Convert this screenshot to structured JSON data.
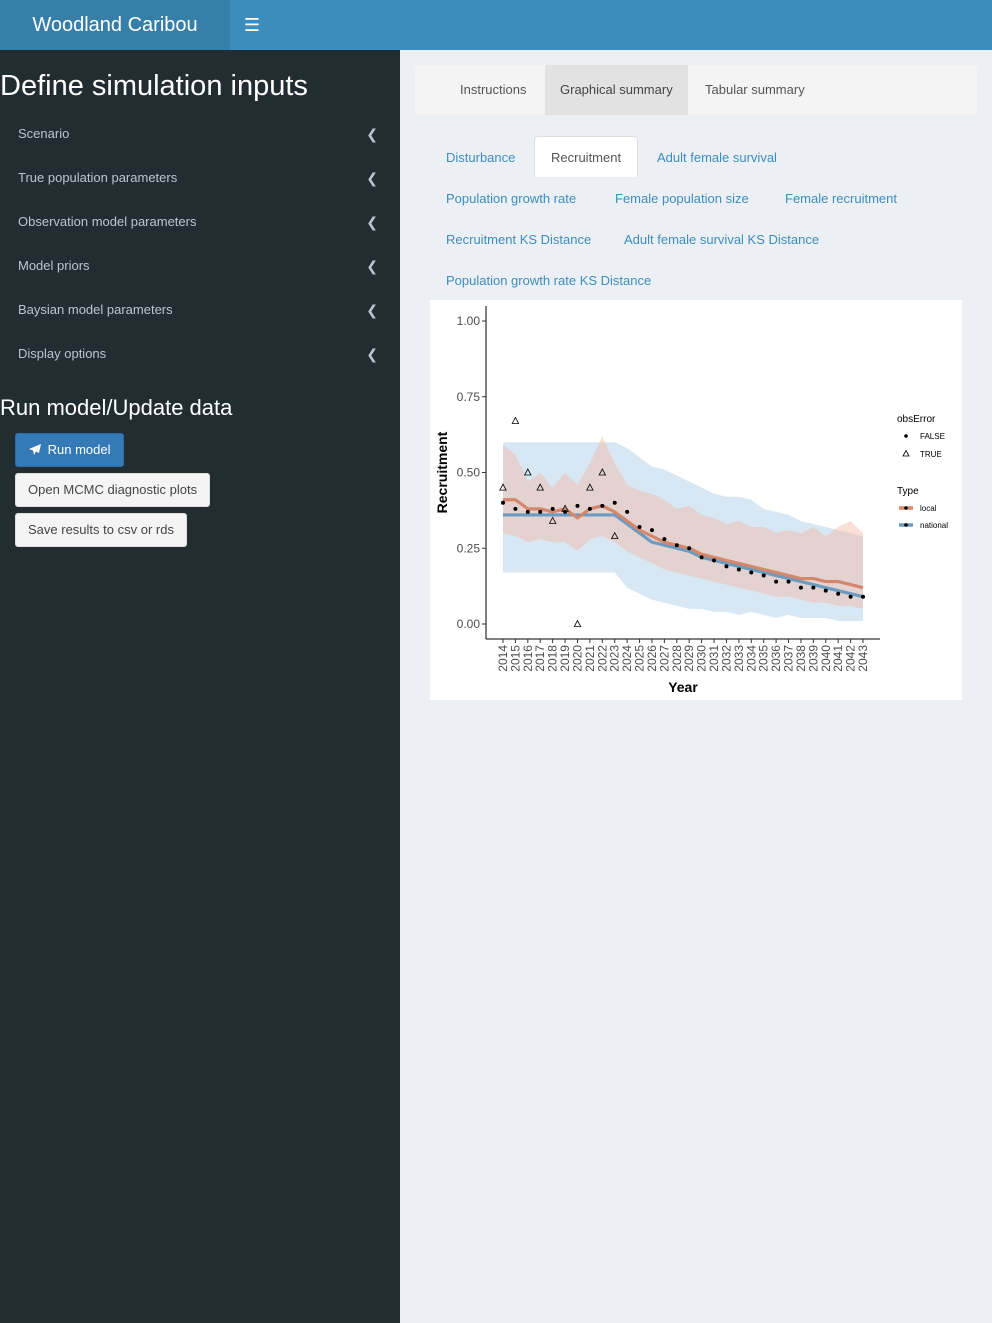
{
  "header": {
    "title": "Woodland Caribou",
    "toggle_icon": "hamburger-icon"
  },
  "sidebar": {
    "title": "Define simulation inputs",
    "items": [
      {
        "label": "Scenario"
      },
      {
        "label": "True population parameters"
      },
      {
        "label": "Observation model parameters"
      },
      {
        "label": "Model priors"
      },
      {
        "label": "Baysian model parameters"
      },
      {
        "label": "Display options"
      }
    ],
    "run_title": "Run model/Update data",
    "run_button": "Run model",
    "mcmc_button": "Open MCMC diagnostic plots",
    "save_button": "Save results to csv or rds"
  },
  "main_tabs": [
    {
      "label": "Instructions"
    },
    {
      "label": "Graphical summary",
      "active": true
    },
    {
      "label": "Tabular summary"
    }
  ],
  "sub_tabs": [
    {
      "label": "Disturbance"
    },
    {
      "label": "Recruitment",
      "active": true
    },
    {
      "label": "Adult female survival"
    },
    {
      "label": "Population growth rate"
    },
    {
      "label": "Female population size"
    },
    {
      "label": "Female recruitment"
    },
    {
      "label": "Recruitment KS Distance"
    },
    {
      "label": "Adult female survival KS Distance"
    },
    {
      "label": "Population growth rate KS Distance"
    }
  ],
  "colors": {
    "accent": "#3c8dbc",
    "sidebar": "#222d32",
    "local": "#d4876b",
    "national": "#6c9bc2"
  },
  "chart_data": {
    "type": "line",
    "xlabel": "Year",
    "ylabel": "Recruitment",
    "ylim": [
      0,
      1
    ],
    "yticks": [
      "0.00",
      "0.25",
      "0.50",
      "0.75",
      "1.00"
    ],
    "x": [
      2014,
      2015,
      2016,
      2017,
      2018,
      2019,
      2020,
      2021,
      2022,
      2023,
      2024,
      2025,
      2026,
      2027,
      2028,
      2029,
      2030,
      2031,
      2032,
      2033,
      2034,
      2035,
      2036,
      2037,
      2038,
      2039,
      2040,
      2041,
      2042,
      2043
    ],
    "series": [
      {
        "name": "local",
        "values": [
          0.41,
          0.41,
          0.38,
          0.38,
          0.37,
          0.38,
          0.35,
          0.38,
          0.39,
          0.37,
          0.34,
          0.31,
          0.29,
          0.27,
          0.26,
          0.25,
          0.23,
          0.22,
          0.21,
          0.2,
          0.19,
          0.18,
          0.17,
          0.16,
          0.15,
          0.15,
          0.14,
          0.14,
          0.13,
          0.12
        ],
        "lower": [
          0.3,
          0.29,
          0.27,
          0.28,
          0.27,
          0.27,
          0.24,
          0.28,
          0.29,
          0.27,
          0.24,
          0.22,
          0.2,
          0.18,
          0.17,
          0.16,
          0.15,
          0.14,
          0.13,
          0.12,
          0.11,
          0.1,
          0.09,
          0.09,
          0.08,
          0.07,
          0.07,
          0.06,
          0.06,
          0.05
        ],
        "upper": [
          0.59,
          0.56,
          0.47,
          0.5,
          0.45,
          0.5,
          0.46,
          0.53,
          0.62,
          0.53,
          0.46,
          0.44,
          0.43,
          0.41,
          0.38,
          0.39,
          0.36,
          0.35,
          0.33,
          0.34,
          0.32,
          0.32,
          0.3,
          0.31,
          0.3,
          0.32,
          0.29,
          0.32,
          0.34,
          0.3
        ]
      },
      {
        "name": "national",
        "values": [
          0.36,
          0.36,
          0.36,
          0.36,
          0.36,
          0.36,
          0.36,
          0.36,
          0.36,
          0.36,
          0.33,
          0.3,
          0.27,
          0.26,
          0.25,
          0.24,
          0.22,
          0.21,
          0.2,
          0.19,
          0.18,
          0.17,
          0.16,
          0.15,
          0.14,
          0.13,
          0.12,
          0.11,
          0.1,
          0.09
        ],
        "lower": [
          0.17,
          0.17,
          0.17,
          0.17,
          0.17,
          0.17,
          0.17,
          0.17,
          0.17,
          0.17,
          0.12,
          0.1,
          0.08,
          0.07,
          0.06,
          0.05,
          0.05,
          0.04,
          0.04,
          0.03,
          0.04,
          0.03,
          0.02,
          0.03,
          0.02,
          0.02,
          0.02,
          0.01,
          0.01,
          0.01
        ],
        "upper": [
          0.6,
          0.6,
          0.6,
          0.6,
          0.6,
          0.6,
          0.6,
          0.6,
          0.6,
          0.6,
          0.58,
          0.55,
          0.52,
          0.51,
          0.49,
          0.47,
          0.45,
          0.43,
          0.42,
          0.42,
          0.41,
          0.38,
          0.37,
          0.36,
          0.34,
          0.33,
          0.32,
          0.31,
          0.3,
          0.29
        ]
      }
    ],
    "points_false": [
      [
        2014,
        0.4
      ],
      [
        2015,
        0.38
      ],
      [
        2016,
        0.37
      ],
      [
        2017,
        0.37
      ],
      [
        2018,
        0.38
      ],
      [
        2019,
        0.37
      ],
      [
        2020,
        0.39
      ],
      [
        2021,
        0.38
      ],
      [
        2022,
        0.39
      ],
      [
        2023,
        0.4
      ],
      [
        2024,
        0.37
      ],
      [
        2025,
        0.32
      ],
      [
        2026,
        0.31
      ],
      [
        2027,
        0.28
      ],
      [
        2028,
        0.26
      ],
      [
        2029,
        0.25
      ],
      [
        2030,
        0.22
      ],
      [
        2031,
        0.21
      ],
      [
        2032,
        0.19
      ],
      [
        2033,
        0.18
      ],
      [
        2034,
        0.17
      ],
      [
        2035,
        0.16
      ],
      [
        2036,
        0.14
      ],
      [
        2037,
        0.14
      ],
      [
        2038,
        0.12
      ],
      [
        2039,
        0.12
      ],
      [
        2040,
        0.11
      ],
      [
        2041,
        0.1
      ],
      [
        2042,
        0.09
      ],
      [
        2043,
        0.09
      ]
    ],
    "points_true": [
      [
        2014,
        0.45
      ],
      [
        2015,
        0.67
      ],
      [
        2016,
        0.5
      ],
      [
        2017,
        0.45
      ],
      [
        2018,
        0.34
      ],
      [
        2019,
        0.38
      ],
      [
        2020,
        0.0
      ],
      [
        2021,
        0.45
      ],
      [
        2022,
        0.5
      ],
      [
        2023,
        0.29
      ]
    ],
    "legend": {
      "obs_title": "obsError",
      "obs_items": [
        "FALSE",
        "TRUE"
      ],
      "type_title": "Type",
      "type_items": [
        "local",
        "national"
      ]
    }
  }
}
